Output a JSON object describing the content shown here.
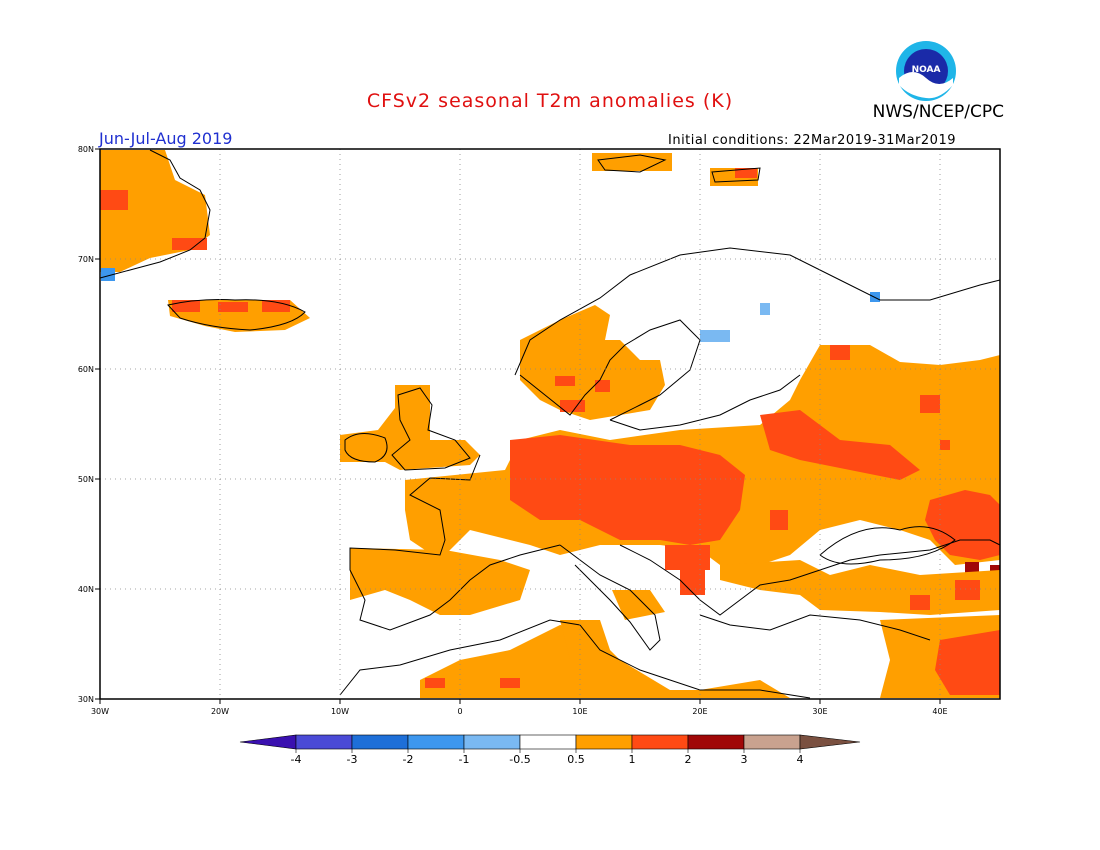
{
  "header": {
    "title": "CFSv2 seasonal T2m anomalies (K)",
    "organization": "NWS/NCEP/CPC",
    "logo_text": "NOAA",
    "season": "Jun-Jul-Aug 2019",
    "initial_conditions": "Initial conditions: 22Mar2019-31Mar2019"
  },
  "map": {
    "region": "Europe",
    "lon_range": [
      -30,
      45
    ],
    "lat_range": [
      30,
      80
    ],
    "lon_ticks": [
      "30W",
      "20W",
      "10W",
      "0",
      "10E",
      "20E",
      "30E",
      "40E"
    ],
    "lat_ticks": [
      "80N",
      "70N",
      "60N",
      "50N",
      "40N",
      "30N"
    ],
    "grid": "dotted"
  },
  "colorbar": {
    "labels": [
      "-4",
      "-3",
      "-2",
      "-1",
      "-0.5",
      "0.5",
      "1",
      "2",
      "3",
      "4"
    ],
    "colors": [
      "#3a10b0",
      "#4a4ad6",
      "#1e6fd8",
      "#3d97ee",
      "#7ab9f2",
      "#ffffff",
      "#ff9f00",
      "#ff4a14",
      "#a00808",
      "#c9a28f",
      "#7a5040"
    ]
  }
}
